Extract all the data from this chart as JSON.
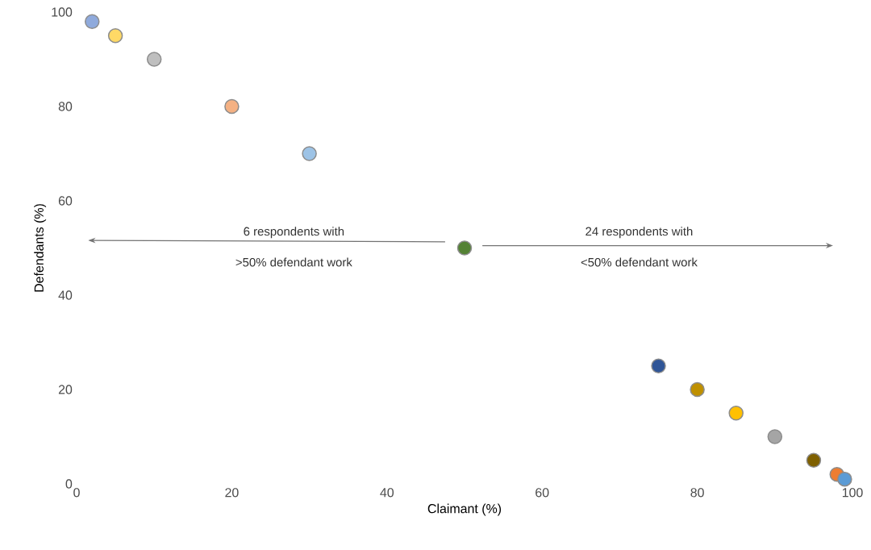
{
  "chart_data": {
    "type": "scatter",
    "xlabel": "Claimant (%)",
    "ylabel": "Defendants (%)",
    "x": [
      2,
      5,
      10,
      20,
      30,
      50,
      75,
      80,
      85,
      90,
      95,
      98,
      99
    ],
    "values": [
      98,
      95,
      90,
      80,
      70,
      50,
      25,
      20,
      15,
      10,
      5,
      2,
      1
    ],
    "colors": [
      "#8faadc",
      "#ffd966",
      "#bfbfbf",
      "#f4b183",
      "#9dc3e6",
      "#548235",
      "#2f5597",
      "#bf9000",
      "#ffc000",
      "#a5a5a5",
      "#7f6000",
      "#ed7d31",
      "#5b9bd5"
    ],
    "xlim": [
      0,
      100
    ],
    "ylim": [
      0,
      100
    ],
    "xticks": [
      0,
      20,
      40,
      60,
      80,
      100
    ],
    "yticks": [
      0,
      20,
      40,
      60,
      80,
      100
    ],
    "grid": false,
    "annotations": [
      "6 respondents with",
      ">50% defendant work",
      "24 respondents with",
      "<50% defendant work"
    ]
  }
}
